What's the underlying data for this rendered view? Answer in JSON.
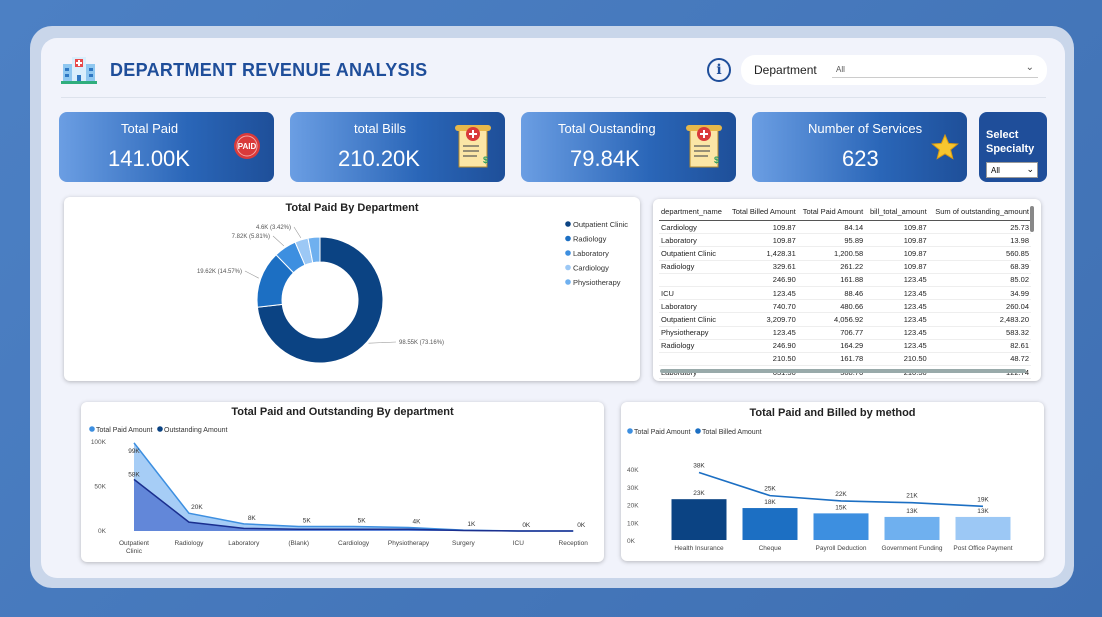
{
  "header": {
    "title": "DEPARTMENT REVENUE ANALYSIS",
    "info_glyph": "i",
    "department_label": "Department",
    "department_value": "All"
  },
  "kpis": [
    {
      "label": "Total Paid",
      "value": "141.00K",
      "icon": "paid-stamp-icon"
    },
    {
      "label": "total Bills",
      "value": "210.20K",
      "icon": "medical-bill-icon"
    },
    {
      "label": "Total Oustanding",
      "value": "79.84K",
      "icon": "medical-bill-icon"
    },
    {
      "label": "Number of Services",
      "value": "623",
      "icon": "star-icon"
    }
  ],
  "specialty": {
    "label_line1": "Select",
    "label_line2": "Specialty",
    "value": "All"
  },
  "colors": {
    "navy": "#0b4383",
    "blue": "#1c6fc3",
    "mid_blue": "#3d8fe0",
    "light_blue": "#9cc8f5",
    "sky": "#6fb0ef"
  },
  "table": {
    "columns": [
      "department_name",
      "Total Billed Amount",
      "Total Paid Amount",
      "bill_total_amount",
      "Sum of outstanding_amount"
    ],
    "rows": [
      [
        "Cardiology",
        "109.87",
        "84.14",
        "109.87",
        "25.73"
      ],
      [
        "Laboratory",
        "109.87",
        "95.89",
        "109.87",
        "13.98"
      ],
      [
        "Outpatient Clinic",
        "1,428.31",
        "1,200.58",
        "109.87",
        "560.85"
      ],
      [
        "Radiology",
        "329.61",
        "261.22",
        "109.87",
        "68.39"
      ],
      [
        "",
        "246.90",
        "161.88",
        "123.45",
        "85.02"
      ],
      [
        "ICU",
        "123.45",
        "88.46",
        "123.45",
        "34.99"
      ],
      [
        "Laboratory",
        "740.70",
        "480.66",
        "123.45",
        "260.04"
      ],
      [
        "Outpatient Clinic",
        "3,209.70",
        "4,056.92",
        "123.45",
        "2,483.20"
      ],
      [
        "Physiotherapy",
        "123.45",
        "706.77",
        "123.45",
        "583.32"
      ],
      [
        "Radiology",
        "246.90",
        "164.29",
        "123.45",
        "82.61"
      ],
      [
        "",
        "210.50",
        "161.78",
        "210.50",
        "48.72"
      ],
      [
        "Laboratory",
        "631.50",
        "508.76",
        "210.50",
        "122.74"
      ]
    ]
  },
  "chart_data": [
    {
      "type": "pie",
      "title": "Total Paid By Department",
      "categories": [
        "Outpatient Clinic",
        "Radiology",
        "Laboratory",
        "Cardiology",
        "Physiotherapy"
      ],
      "values": [
        98.55,
        19.62,
        7.82,
        4.6,
        4.11
      ],
      "units": "K",
      "data_labels": [
        "98.55K (73.16%)",
        "19.62K (14.57%)",
        "7.82K (5.81%)",
        "4.6K (3.42%)",
        ""
      ],
      "legend": "right",
      "donut": true
    },
    {
      "type": "area",
      "title": "Total Paid and Outstanding By department",
      "categories": [
        "Outpatient Clinic",
        "Radiology",
        "Laboratory",
        "(Blank)",
        "Cardiology",
        "Physiotherapy",
        "Surgery",
        "ICU",
        "Reception"
      ],
      "series": [
        {
          "name": "Total Paid Amount",
          "values": [
            99,
            20,
            8,
            5,
            5,
            4,
            1,
            0,
            0
          ]
        },
        {
          "name": "Outstanding Amount",
          "values": [
            58,
            10,
            3,
            2,
            2,
            2,
            0.5,
            0,
            0
          ]
        }
      ],
      "data_labels": [
        "99K",
        "20K",
        "8K",
        "5K",
        "5K",
        "4K",
        "1K",
        "0K",
        "0K"
      ],
      "secondary_labels": [
        "58K",
        "",
        "",
        "",
        "",
        "",
        "",
        "",
        ""
      ],
      "yticks": [
        "0K",
        "50K",
        "100K"
      ],
      "ylim": [
        0,
        100
      ],
      "legend": "top-left"
    },
    {
      "type": "bar",
      "title": "Total Paid and Billed by method",
      "categories": [
        "Health Insurance",
        "Cheque",
        "Payroll Deduction",
        "Government Funding",
        "Post Office Payment"
      ],
      "series": [
        {
          "name": "Total Paid Amount",
          "values": [
            23,
            18,
            15,
            13,
            13
          ]
        },
        {
          "name": "Total Billed Amount",
          "values": [
            38,
            25,
            22,
            21,
            19
          ]
        }
      ],
      "bar_labels": [
        "23K",
        "18K",
        "15K",
        "13K",
        "13K"
      ],
      "line_labels": [
        "38K",
        "25K",
        "22K",
        "21K",
        "19K"
      ],
      "bar_colors": [
        "#0b4383",
        "#1c6fc3",
        "#3d8fe0",
        "#6fb0ef",
        "#9cc8f5"
      ],
      "yticks": [
        "0K",
        "10K",
        "20K",
        "30K",
        "40K"
      ],
      "ylim": [
        0,
        40
      ],
      "legend": "top-left"
    }
  ]
}
